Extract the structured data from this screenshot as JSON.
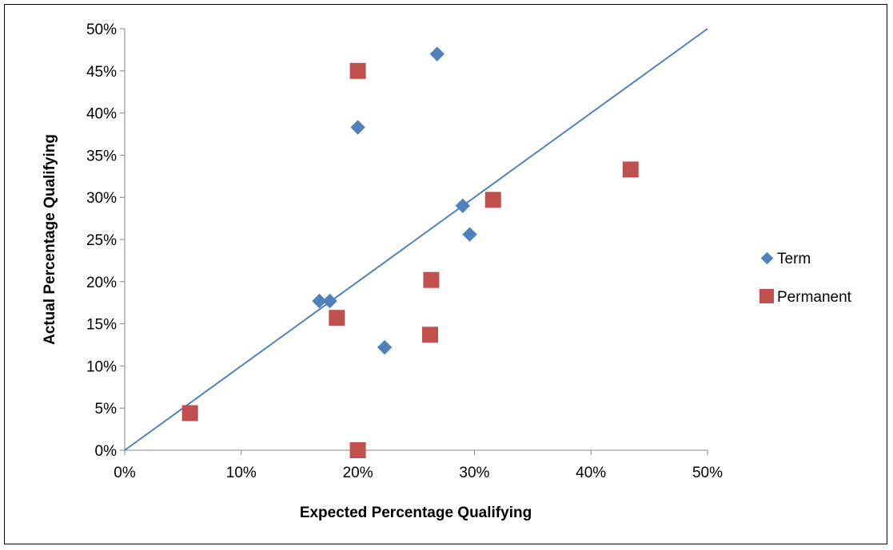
{
  "chart_data": {
    "type": "scatter",
    "title": "",
    "xlabel": "Expected Percentage Qualifying",
    "ylabel": "Actual Percentage Qualifying",
    "xlim": [
      0,
      0.5
    ],
    "ylim": [
      0,
      0.5
    ],
    "x_ticks": [
      "0%",
      "10%",
      "20%",
      "30%",
      "40%",
      "50%"
    ],
    "y_ticks": [
      "0%",
      "5%",
      "10%",
      "15%",
      "20%",
      "25%",
      "30%",
      "35%",
      "40%",
      "45%",
      "50%"
    ],
    "grid": false,
    "legend_position": "right",
    "reference_line": {
      "from": [
        0,
        0
      ],
      "to": [
        0.5,
        0.5
      ],
      "color": "#4F81BD"
    },
    "series": [
      {
        "name": "Term",
        "marker": "diamond",
        "color": "#4F81BD",
        "points": [
          [
            0.167,
            0.177
          ],
          [
            0.176,
            0.177
          ],
          [
            0.2,
            0.383
          ],
          [
            0.223,
            0.122
          ],
          [
            0.268,
            0.47
          ],
          [
            0.29,
            0.29
          ],
          [
            0.296,
            0.256
          ]
        ]
      },
      {
        "name": "Permanent",
        "marker": "square",
        "color": "#C0504D",
        "points": [
          [
            0.056,
            0.044
          ],
          [
            0.182,
            0.157
          ],
          [
            0.2,
            0.45
          ],
          [
            0.2,
            0.0
          ],
          [
            0.262,
            0.137
          ],
          [
            0.263,
            0.202
          ],
          [
            0.316,
            0.297
          ],
          [
            0.434,
            0.333
          ]
        ]
      }
    ]
  }
}
